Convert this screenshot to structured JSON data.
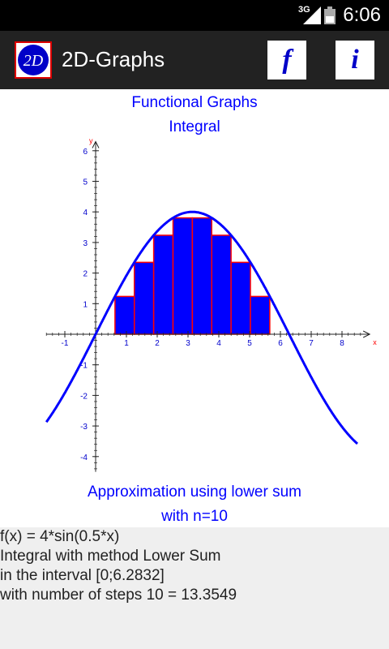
{
  "status_bar": {
    "time": "6:06",
    "network": "3G"
  },
  "app": {
    "title": "2D-Graphs",
    "logo_text": "2D",
    "function_button": "f",
    "info_button": "i"
  },
  "graph": {
    "title_line1": "Functional Graphs",
    "title_line2": "Integral",
    "caption_line1": "Approximation using lower sum",
    "caption_line2": "with n=10"
  },
  "chart_data": {
    "type": "line",
    "function": "4*sin(0.5*x)",
    "xlabel": "x",
    "ylabel": "y",
    "xlim": [
      -1.6,
      8.9
    ],
    "ylim": [
      -4.5,
      6.3
    ],
    "x_ticks": [
      -1,
      1,
      2,
      3,
      4,
      5,
      6,
      7,
      8
    ],
    "y_ticks": [
      -4,
      -3,
      -2,
      -1,
      1,
      2,
      3,
      4,
      5,
      6
    ],
    "curve_x_range": [
      -1.6,
      8.5
    ],
    "bars": {
      "method": "Lower Sum",
      "interval": [
        0,
        6.2832
      ],
      "n": 10,
      "heights": [
        0,
        1.236,
        2.351,
        3.236,
        3.804,
        3.804,
        3.236,
        2.351,
        1.236,
        0
      ],
      "fill": "#0000ff",
      "stroke": "#ff0000"
    },
    "curve_color": "#0000ff"
  },
  "result": {
    "lines": [
      "f(x) = 4*sin(0.5*x)",
      "Integral with method Lower Sum",
      "in the interval [0;6.2832]",
      "with number of steps 10 = 13.3549"
    ]
  }
}
